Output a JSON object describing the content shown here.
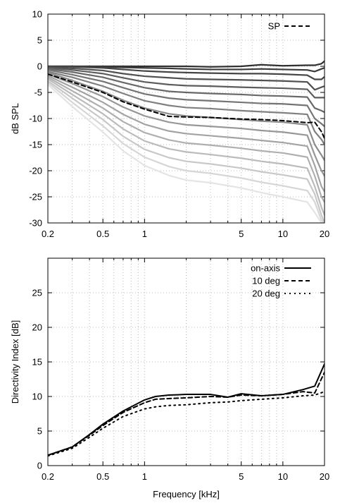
{
  "chart_data": [
    {
      "type": "line",
      "x_scale": "log",
      "xlim": [
        0.2,
        20
      ],
      "ylim": [
        -30,
        10
      ],
      "ylabel": "dB SPL",
      "xlabel": "",
      "x_tick_labels": [
        "0.2",
        "0.5",
        "1",
        "5",
        "10",
        "20"
      ],
      "x_tick_values": [
        0.2,
        0.5,
        1,
        5,
        10,
        20
      ],
      "y_tick_labels": [
        "-30",
        "-25",
        "-20",
        "-15",
        "-10",
        "-5",
        "0",
        "5",
        "10"
      ],
      "y_tick_values": [
        -30,
        -25,
        -20,
        -15,
        -10,
        -5,
        0,
        5,
        10
      ],
      "grid": true,
      "legend_position": "top-right",
      "legend": [
        {
          "label": "SP",
          "style": "dashed",
          "color": "#000000"
        }
      ],
      "x": [
        0.2,
        0.3,
        0.5,
        0.7,
        1,
        1.5,
        2,
        3,
        5,
        7,
        10,
        15,
        17,
        19,
        20
      ],
      "series": [
        {
          "name": "SP",
          "style": "dashed",
          "color": "#000000",
          "values": [
            -1.5,
            -3,
            -5,
            -6.8,
            -8.2,
            -9.6,
            -9.7,
            -9.8,
            -10.1,
            -10.2,
            -10.4,
            -10.8,
            -10.7,
            -12.5,
            -13.8
          ]
        },
        {
          "color": "#303030",
          "values": [
            0,
            0,
            0,
            0,
            0,
            0,
            0,
            -0.1,
            0,
            0.3,
            0.1,
            0.2,
            0.2,
            0.5,
            1
          ]
        },
        {
          "color": "#3a3a3a",
          "values": [
            0,
            0,
            -0.1,
            -0.2,
            -0.3,
            -0.4,
            -0.5,
            -0.6,
            -0.6,
            -0.5,
            -0.6,
            -0.7,
            -1,
            -0.5,
            -0.3
          ]
        },
        {
          "color": "#454545",
          "values": [
            0,
            -0.1,
            -0.3,
            -0.6,
            -0.9,
            -1.1,
            -1.2,
            -1.3,
            -1.4,
            -1.4,
            -1.5,
            -1.7,
            -2.5,
            -2.5,
            -2
          ]
        },
        {
          "color": "#505050",
          "values": [
            -0.2,
            -0.4,
            -0.8,
            -1.4,
            -1.9,
            -2.2,
            -2.4,
            -2.5,
            -2.6,
            -2.7,
            -2.8,
            -3,
            -4.5,
            -4,
            -3.8
          ]
        },
        {
          "color": "#5c5c5c",
          "values": [
            -0.3,
            -0.7,
            -1.4,
            -2.2,
            -3,
            -3.5,
            -3.7,
            -3.8,
            -4,
            -4.1,
            -4.2,
            -4.4,
            -6,
            -6,
            -6
          ]
        },
        {
          "color": "#686868",
          "values": [
            -0.5,
            -1.1,
            -2.1,
            -3.1,
            -4.1,
            -4.8,
            -5,
            -5.2,
            -5.4,
            -5.6,
            -5.7,
            -5.9,
            -8,
            -8.5,
            -8.8
          ]
        },
        {
          "color": "#747474",
          "values": [
            -0.7,
            -1.6,
            -2.9,
            -4.1,
            -5.3,
            -6.1,
            -6.4,
            -6.6,
            -6.9,
            -7.1,
            -7.2,
            -7.5,
            -10,
            -11,
            -11.5
          ]
        },
        {
          "color": "#808080",
          "values": [
            -1,
            -2.1,
            -3.8,
            -5.2,
            -6.6,
            -7.5,
            -7.9,
            -8.1,
            -8.5,
            -8.7,
            -8.9,
            -9.2,
            -12.5,
            -14,
            -15
          ]
        },
        {
          "color": "#8b8b8b",
          "values": [
            -1.2,
            -2.7,
            -4.8,
            -6.5,
            -8,
            -9.1,
            -9.5,
            -9.8,
            -10.2,
            -10.5,
            -10.7,
            -11.2,
            -15,
            -17,
            -18
          ]
        },
        {
          "color": "#979797",
          "values": [
            -1.5,
            -3.3,
            -5.8,
            -7.8,
            -9.5,
            -10.7,
            -11.2,
            -11.5,
            -11.9,
            -12.3,
            -12.6,
            -13.2,
            -17,
            -20,
            -21
          ]
        },
        {
          "color": "#a3a3a3",
          "values": [
            -1.8,
            -4,
            -6.9,
            -9.2,
            -11.1,
            -12.4,
            -12.9,
            -13.3,
            -13.8,
            -14.2,
            -14.6,
            -15.3,
            -19,
            -23,
            -24
          ]
        },
        {
          "color": "#afafaf",
          "values": [
            -2.1,
            -4.7,
            -8,
            -10.6,
            -12.7,
            -14.1,
            -14.7,
            -15.1,
            -15.7,
            -16.2,
            -16.6,
            -17.4,
            -21,
            -25,
            -26
          ]
        },
        {
          "color": "#bbbbbb",
          "values": [
            -2.4,
            -5.4,
            -9.1,
            -12,
            -14.3,
            -15.8,
            -16.4,
            -16.9,
            -17.6,
            -18.2,
            -18.7,
            -19.5,
            -23,
            -27,
            -28.5
          ]
        },
        {
          "color": "#c8c8c8",
          "values": [
            -2.8,
            -6.1,
            -10.2,
            -13.4,
            -15.9,
            -17.5,
            -18.2,
            -18.7,
            -19.5,
            -20.2,
            -20.8,
            -21.6,
            -24.5,
            -28.5,
            -30
          ]
        },
        {
          "color": "#d6d6d6",
          "values": [
            -3.1,
            -6.9,
            -11.4,
            -14.8,
            -17.4,
            -19.2,
            -20,
            -20.5,
            -21.4,
            -22.2,
            -22.9,
            -23.8,
            -26,
            -29.5,
            -30
          ]
        },
        {
          "color": "#e4e4e4",
          "values": [
            -3.5,
            -7.7,
            -12.6,
            -16.2,
            -19,
            -20.9,
            -21.8,
            -22.3,
            -23.3,
            -24.2,
            -25,
            -26,
            -28,
            -30,
            -30
          ]
        }
      ]
    },
    {
      "type": "line",
      "x_scale": "log",
      "xlim": [
        0.2,
        20
      ],
      "ylim": [
        0,
        30
      ],
      "ylabel": "Directivity Index [dB]",
      "xlabel": "Frequency [kHz]",
      "x_tick_labels": [
        "0.2",
        "0.5",
        "1",
        "5",
        "10",
        "20"
      ],
      "x_tick_values": [
        0.2,
        0.5,
        1,
        5,
        10,
        20
      ],
      "y_tick_labels": [
        "0",
        "5",
        "10",
        "15",
        "20",
        "25"
      ],
      "y_tick_values": [
        0,
        5,
        10,
        15,
        20,
        25
      ],
      "grid": true,
      "legend_position": "top-right",
      "legend": [
        {
          "label": "on-axis",
          "style": "solid",
          "color": "#000000"
        },
        {
          "label": "10 deg",
          "style": "dashed",
          "color": "#000000"
        },
        {
          "label": "20 deg",
          "style": "dotted",
          "color": "#000000"
        }
      ],
      "x": [
        0.2,
        0.3,
        0.4,
        0.5,
        0.7,
        1,
        1.2,
        1.5,
        2,
        3,
        4,
        5,
        7,
        10,
        14,
        17,
        20
      ],
      "series": [
        {
          "name": "on-axis",
          "style": "solid",
          "color": "#000000",
          "values": [
            1.5,
            2.7,
            4.5,
            6,
            7.9,
            9.5,
            10,
            10.2,
            10.3,
            10.3,
            9.9,
            10.4,
            10.1,
            10.3,
            11,
            11.5,
            14.7
          ]
        },
        {
          "name": "10 deg",
          "style": "dashed",
          "color": "#000000",
          "values": [
            1.5,
            2.7,
            4.4,
            5.8,
            7.7,
            9.1,
            9.6,
            9.7,
            9.8,
            10,
            9.9,
            10.2,
            10.1,
            10.3,
            10.7,
            10.5,
            13.5
          ]
        },
        {
          "name": "20 deg",
          "style": "dotted",
          "color": "#000000",
          "values": [
            1.4,
            2.5,
            4.1,
            5.4,
            7.1,
            8.2,
            8.5,
            8.7,
            8.8,
            9.1,
            9.2,
            9.4,
            9.6,
            9.8,
            10.1,
            10.2,
            10.7
          ]
        }
      ]
    }
  ]
}
